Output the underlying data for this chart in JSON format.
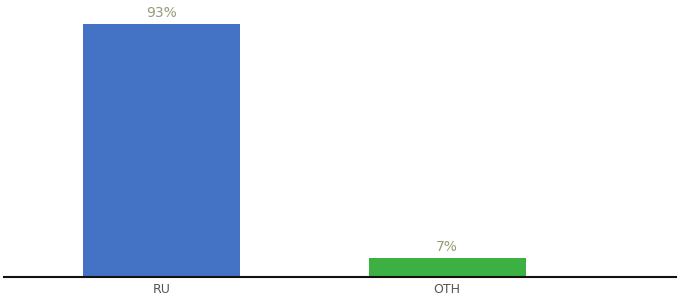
{
  "categories": [
    "RU",
    "OTH"
  ],
  "values": [
    93,
    7
  ],
  "bar_colors": [
    "#4472c4",
    "#3cb043"
  ],
  "value_labels": [
    "93%",
    "7%"
  ],
  "background_color": "#ffffff",
  "ylim": [
    0,
    100
  ],
  "bar_width": 0.55,
  "label_fontsize": 10,
  "tick_fontsize": 9,
  "label_color": "#999977",
  "x_positions": [
    0.0,
    1.0
  ],
  "xlim": [
    -0.55,
    1.8
  ]
}
